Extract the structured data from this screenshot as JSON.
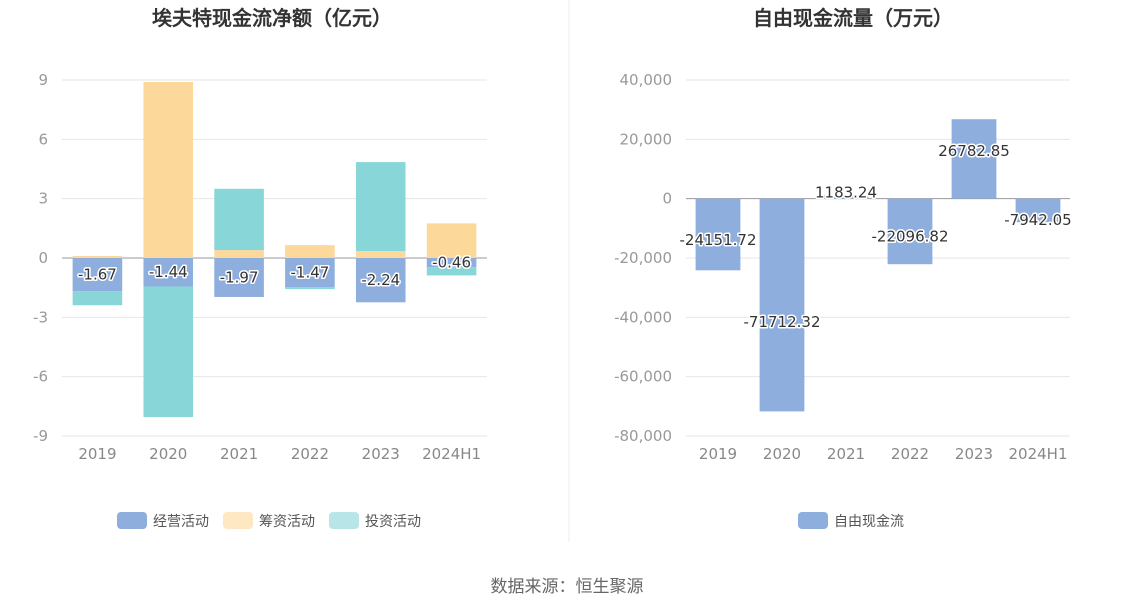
{
  "source": "数据来源：恒生聚源",
  "chart_data": [
    {
      "type": "bar",
      "stacked": true,
      "title": "埃夫特现金流净额（亿元）",
      "categories": [
        "2019",
        "2020",
        "2021",
        "2022",
        "2023",
        "2024H1"
      ],
      "ylim": [
        -9,
        9
      ],
      "yticks": [
        9,
        6,
        3,
        0,
        -3,
        -6,
        -9
      ],
      "legend_position": "bottom",
      "series": [
        {
          "name": "经营活动",
          "color": "#8eaede",
          "values": [
            -1.67,
            -1.44,
            -1.97,
            -1.47,
            -2.24,
            -0.46
          ]
        },
        {
          "name": "筹资活动",
          "color": "#fdd89b",
          "values": [
            0.1,
            8.9,
            0.4,
            0.65,
            0.35,
            1.75
          ]
        },
        {
          "name": "投资活动",
          "color": "#89d6d9",
          "values": [
            -0.72,
            -6.6,
            3.1,
            -0.1,
            4.5,
            -0.42
          ]
        }
      ],
      "data_labels": [
        "-1.67",
        "-1.44",
        "-1.97",
        "-1.47",
        "-2.24",
        "-0.46"
      ]
    },
    {
      "type": "bar",
      "title": "自由现金流量（万元）",
      "categories": [
        "2019",
        "2020",
        "2021",
        "2022",
        "2023",
        "2024H1"
      ],
      "ylim": [
        -80000,
        40000
      ],
      "yticks": [
        40000,
        20000,
        0,
        -20000,
        -40000,
        -60000,
        -80000
      ],
      "ytick_labels": [
        "40,000",
        "20,000",
        "0",
        "-20,000",
        "-40,000",
        "-60,000",
        "-80,000"
      ],
      "legend_position": "bottom",
      "series": [
        {
          "name": "自由现金流",
          "color": "#8eaede",
          "values": [
            -24151.72,
            -71712.32,
            1183.24,
            -22096.82,
            26782.85,
            -7942.05
          ]
        }
      ],
      "data_labels": [
        "-24151.72",
        "-71712.32",
        "1183.24",
        "-22096.82",
        "26782.85",
        "-7942.05"
      ]
    }
  ]
}
